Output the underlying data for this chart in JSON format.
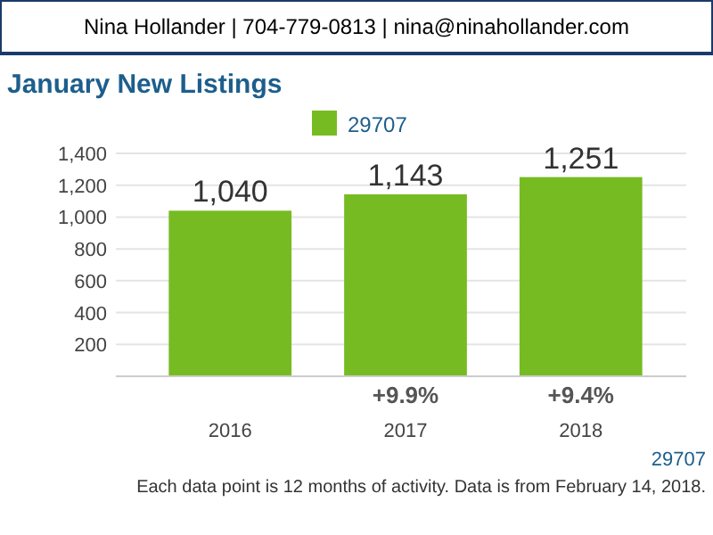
{
  "chart_data": {
    "type": "bar",
    "title": "January New Listings",
    "subtitle": "Nina Hollander | 704-779-0813 | nina@ninahollander.com",
    "categories": [
      "2016",
      "2017",
      "2018"
    ],
    "series": [
      {
        "name": "29707",
        "color": "#77bb22",
        "values": [
          1040,
          1143,
          1251
        ]
      }
    ],
    "value_labels": [
      "1,040",
      "1,143",
      "1,251"
    ],
    "ylim": [
      0,
      1400
    ],
    "yticks": [
      {
        "value": 0,
        "label": null
      },
      {
        "value": 200,
        "label": "200"
      },
      {
        "value": 400,
        "label": "400"
      },
      {
        "value": 600,
        "label": "600"
      },
      {
        "value": 800,
        "label": "800"
      },
      {
        "value": 1000,
        "label": "1,000"
      },
      {
        "value": 1200,
        "label": "1,200"
      },
      {
        "value": 1400,
        "label": "1,400"
      }
    ],
    "grid": "y",
    "legend": "top",
    "annotations": [
      "+9.9%",
      "+9.4%",
      "29707",
      "Each data point is 12 months of activity. Data is from February 14, 2018."
    ]
  }
}
